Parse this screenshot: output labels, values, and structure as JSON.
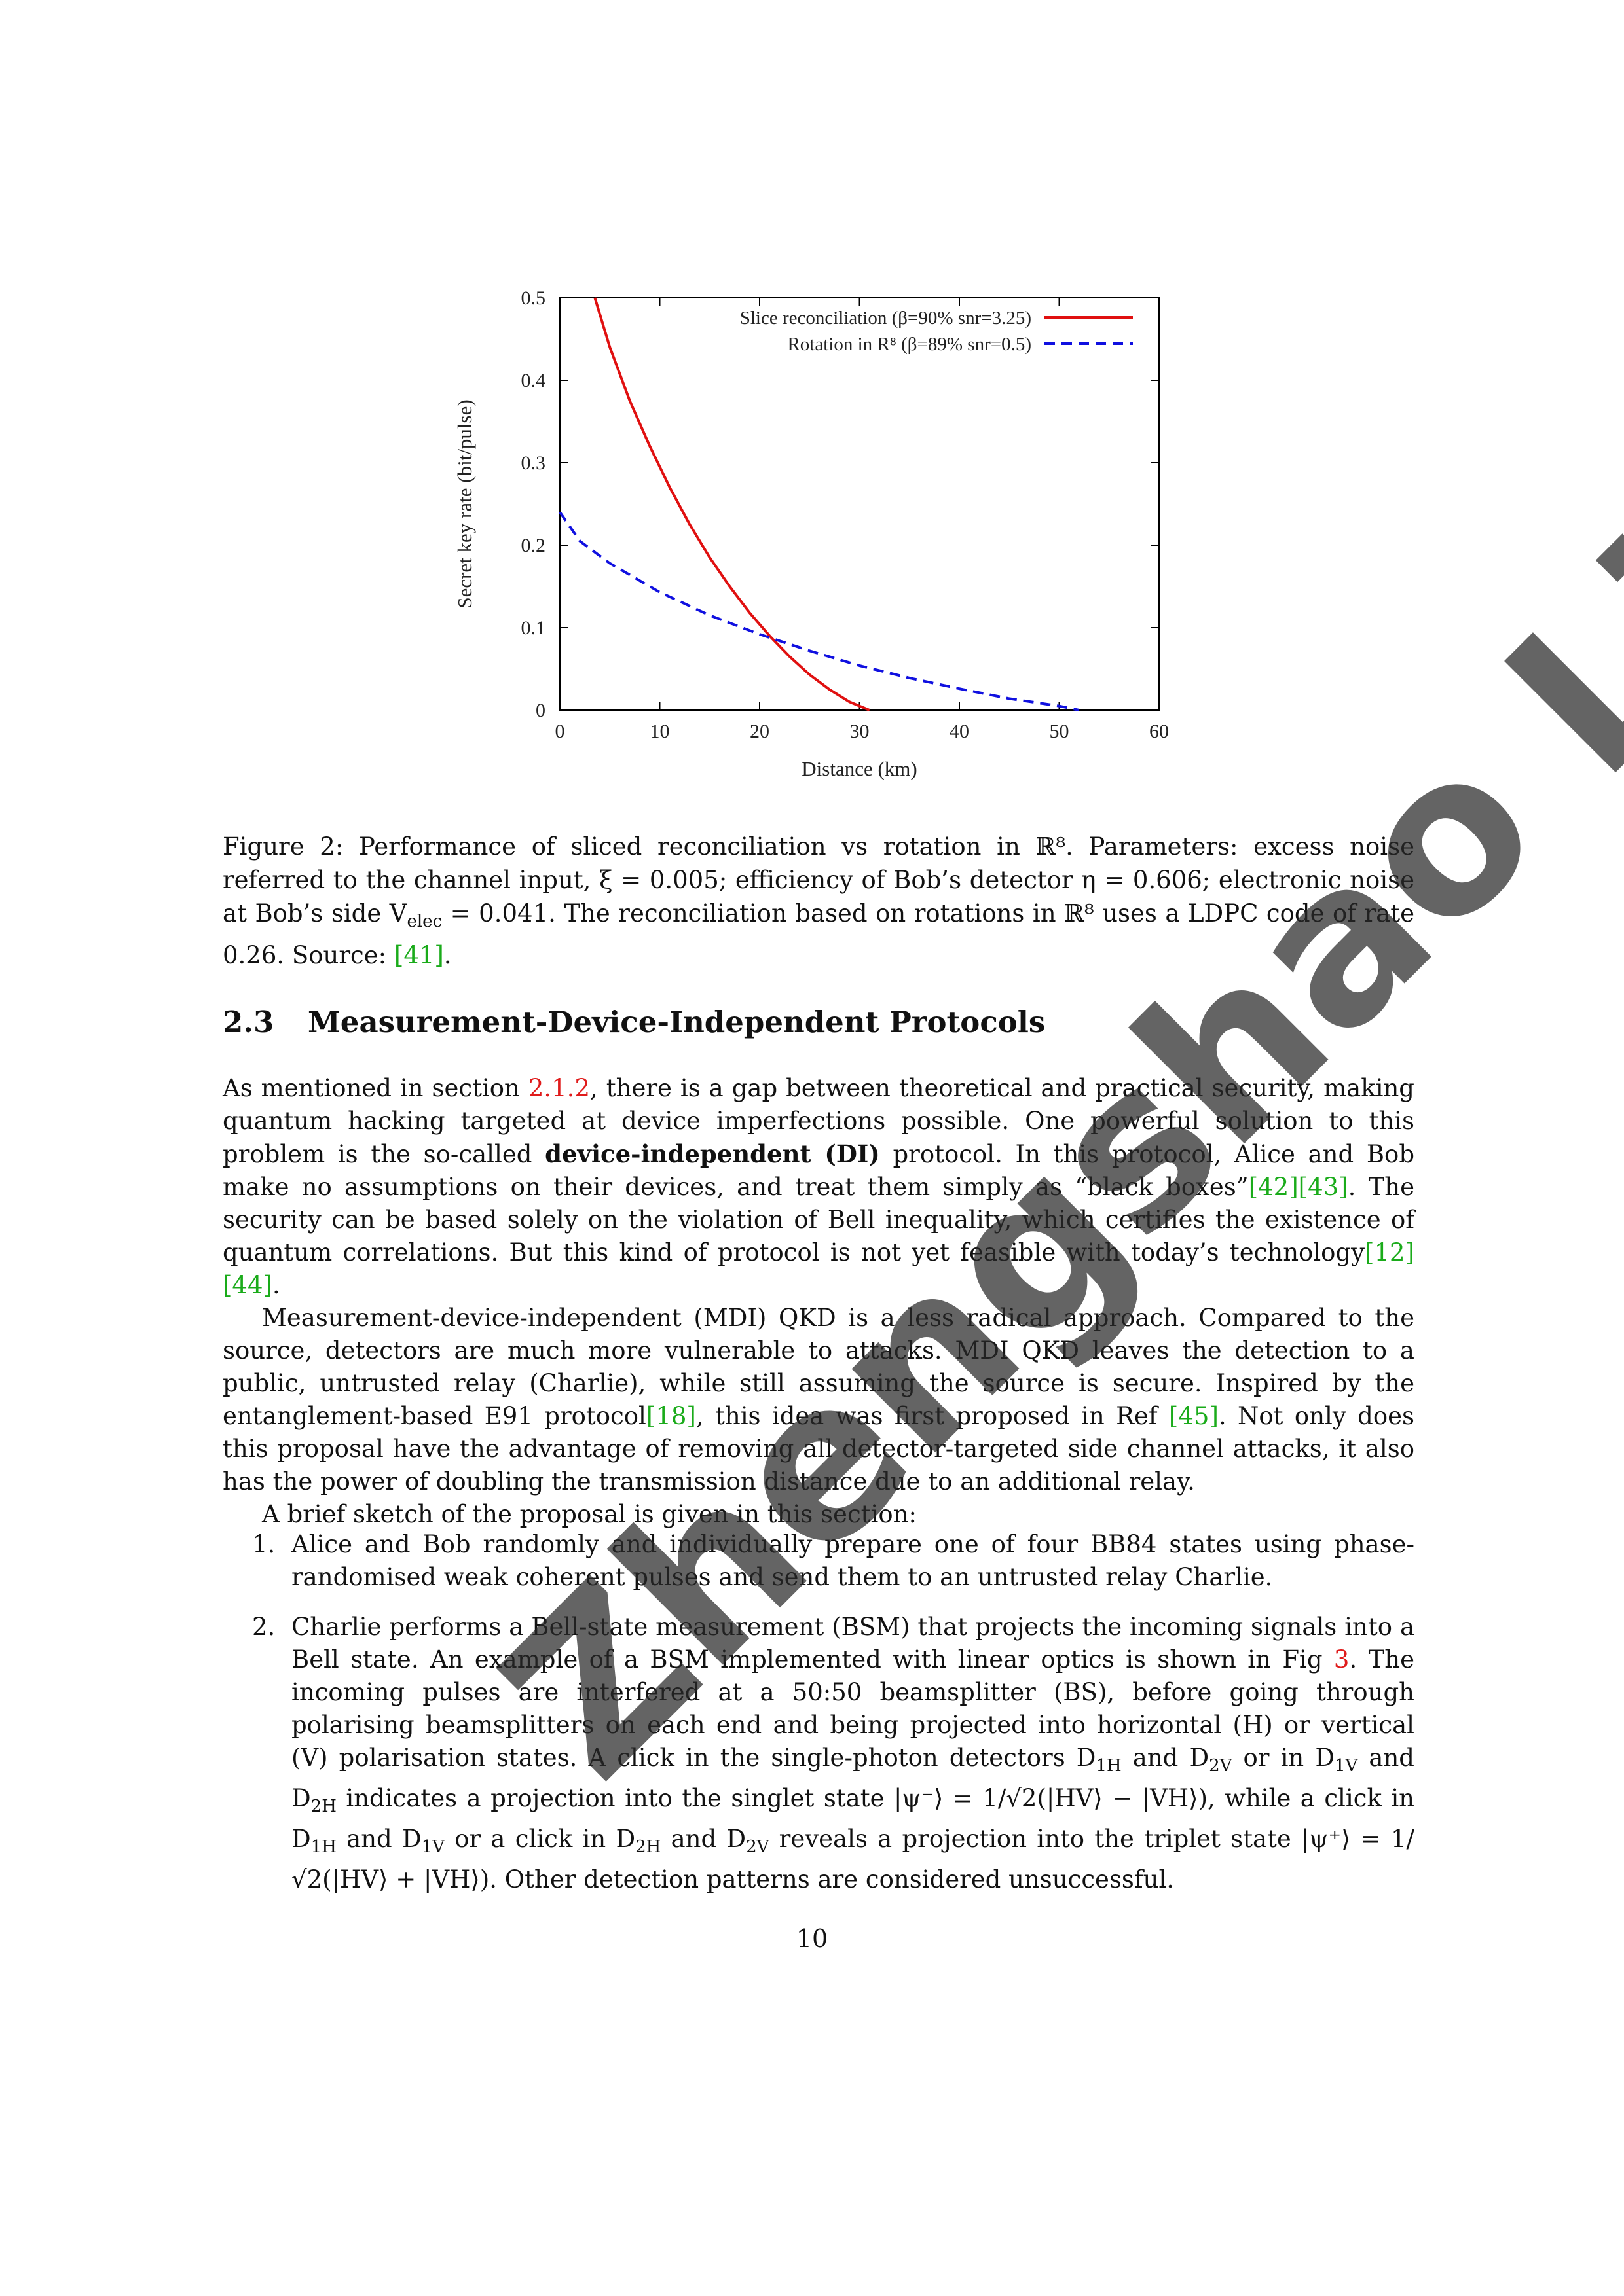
{
  "figure": {
    "caption_label": "Figure 2:",
    "caption_text": "Performance of sliced reconciliation vs rotation in ℝ⁸. Parameters: excess noise referred to the channel input, ξ = 0.005; efficiency of Bob’s detector η = 0.606; electronic noise at Bob’s side V",
    "caption_sub": "elec",
    "caption_text2": " = 0.041. The reconciliation based on rotations in ℝ⁸ uses a LDPC code of rate 0.26. Source: ",
    "caption_cite": "[41]",
    "caption_end": "."
  },
  "chart_data": {
    "type": "line",
    "xlabel": "Distance (km)",
    "ylabel": "Secret key rate (bit/pulse)",
    "xlim": [
      0,
      60
    ],
    "ylim": [
      0,
      0.5
    ],
    "xticks": [
      "0",
      "10",
      "20",
      "30",
      "40",
      "50",
      "60"
    ],
    "yticks": [
      "0",
      "0.1",
      "0.2",
      "0.3",
      "0.4",
      "0.5"
    ],
    "legend_position": "top-right",
    "series": [
      {
        "name": "Slice reconciliation (β=90% snr=3.25)",
        "color": "#e01010",
        "style": "solid",
        "x": [
          3.5,
          5,
          7,
          9,
          11,
          13,
          15,
          17,
          19,
          21,
          23,
          25,
          27,
          29,
          31
        ],
        "y": [
          0.5,
          0.44,
          0.375,
          0.32,
          0.27,
          0.225,
          0.185,
          0.15,
          0.118,
          0.09,
          0.065,
          0.043,
          0.025,
          0.01,
          0.0
        ]
      },
      {
        "name": "Rotation in R⁸ (β=89% snr=0.5)",
        "color": "#1010e0",
        "style": "dashed",
        "x": [
          0,
          2,
          5,
          10,
          15,
          20,
          25,
          30,
          35,
          40,
          45,
          50,
          52
        ],
        "y": [
          0.24,
          0.205,
          0.178,
          0.143,
          0.115,
          0.092,
          0.072,
          0.054,
          0.039,
          0.026,
          0.014,
          0.005,
          0.0
        ]
      }
    ]
  },
  "section": {
    "number": "2.3",
    "title": "Measurement-Device-Independent Protocols"
  },
  "para1": {
    "a": "As mentioned in section ",
    "ref": "2.1.2",
    "b": ", there is a gap between theoretical and practical security, making quantum hacking targeted at device imperfections possible. One powerful solution to this problem is the so-called ",
    "bold": "device-independent (DI)",
    "c": " protocol. In this protocol, Alice and Bob make no assumptions on their devices, and treat them simply as “black boxes”",
    "cite1": "[42]",
    "cite2": "[43]",
    "d": ". The security can be based solely on the violation of Bell inequality, which certifies the existence of quantum correlations. But this kind of protocol is not yet feasible with today’s technology",
    "cite3": "[12]",
    "cite4": "[44]",
    "e": "."
  },
  "para2": {
    "a": "Measurement-device-independent (MDI) QKD is a less radical approach. Compared to the source, detectors are much more vulnerable to attacks. MDI QKD leaves the detection to a public, untrusted relay (Charlie), while still assuming the source is secure. Inspired by the entanglement-based E91 protocol",
    "cite1": "[18]",
    "b": ", this idea was first proposed in Ref ",
    "cite2": "[45]",
    "c": ". Not only does this proposal have the advantage of removing all detector-targeted side channel attacks, it also has the power of doubling the transmission distance due to an additional relay."
  },
  "para3": "A brief sketch of the proposal is given in this section:",
  "list": [
    {
      "num": "1.",
      "text": "Alice and Bob randomly and individually prepare one of four BB84 states using phase-randomised weak coherent pulses and send them to an untrusted relay Charlie."
    },
    {
      "num": "2.",
      "a": "Charlie performs a Bell-state measurement (BSM) that projects the incoming signals into a Bell state. An example of a BSM implemented with linear optics is shown in Fig ",
      "ref": "3",
      "b": ". The incoming pulses are interfered at a 50:50 beamsplitter (BS), before going through polarising beamsplitters on each end and being projected into horizontal (H) or vertical (V) polarisation states. A click in the single-photon detectors D",
      "s1": "1H",
      "c": " and D",
      "s2": "2V",
      "d": " or in D",
      "s3": "1V",
      "e": " and D",
      "s4": "2H",
      "f": " indicates a projection into the singlet state |ψ⁻⟩ = 1/√2(|HV⟩ − |VH⟩), while a click in D",
      "s5": "1H",
      "g": " and D",
      "s6": "1V",
      "h": " or a click in D",
      "s7": "2H",
      "i": " and D",
      "s8": "2V",
      "j": " reveals a projection into the triplet state |ψ⁺⟩ = 1/√2(|HV⟩ + |VH⟩). Other detection patterns are considered unsuccessful."
    }
  ],
  "page_number": "10",
  "watermark": "Zhengshao Li"
}
